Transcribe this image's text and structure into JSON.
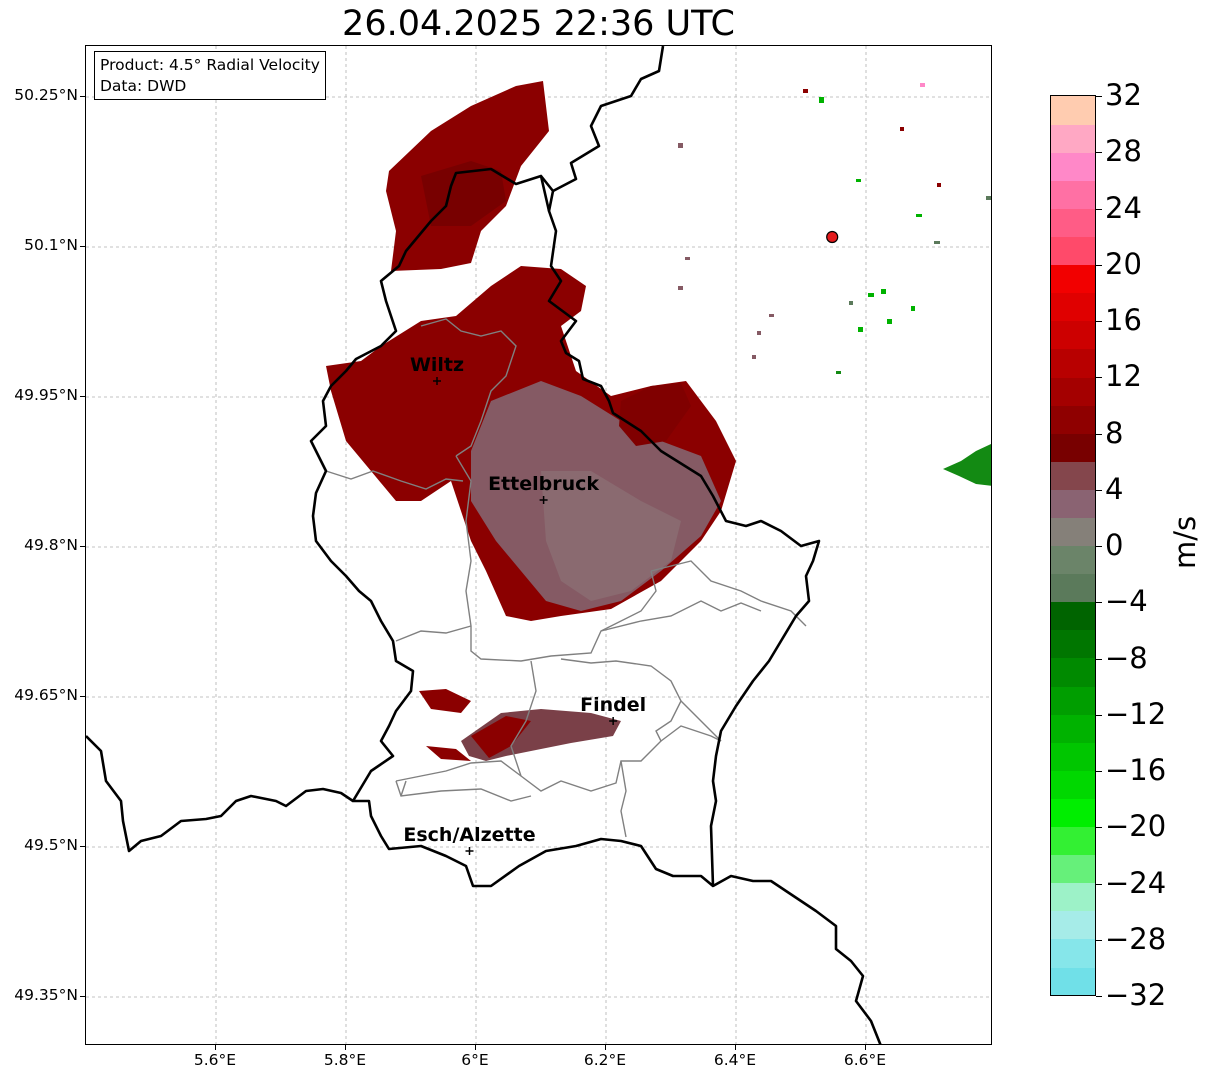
{
  "title": "26.04.2025 22:36 UTC",
  "info": {
    "product": "Product: 4.5° Radial Velocity",
    "source": "Data: DWD"
  },
  "latitude_labels": [
    "50.25°N",
    "50.1°N",
    "49.95°N",
    "49.8°N",
    "49.65°N",
    "49.5°N",
    "49.35°N"
  ],
  "longitude_labels": [
    "5.6°E",
    "5.8°E",
    "6°E",
    "6.2°E",
    "6.4°E",
    "6.6°E"
  ],
  "cities": [
    {
      "name": "Wiltz",
      "lon": 5.94,
      "lat": 49.966
    },
    {
      "name": "Ettelbruck",
      "lon": 6.104,
      "lat": 49.847
    },
    {
      "name": "Findel",
      "lon": 6.211,
      "lat": 49.626
    },
    {
      "name": "Esch/Alzette",
      "lon": 5.99,
      "lat": 49.496
    }
  ],
  "radar_site": {
    "lon": 6.548,
    "lat": 50.11,
    "color": "#e41a1c"
  },
  "colorbar": {
    "label": "m/s",
    "min": -32,
    "max": 32,
    "tick_labels": [
      "32",
      "28",
      "24",
      "20",
      "16",
      "12",
      "8",
      "4",
      "0",
      "−4",
      "−8",
      "−12",
      "−16",
      "−20",
      "−24",
      "−28",
      "−32"
    ],
    "colors_bottom_to_top": [
      "#70e0e8",
      "#86e6ea",
      "#a6ece8",
      "#9df2c8",
      "#66f07a",
      "#33f033",
      "#00ee00",
      "#00d800",
      "#00c600",
      "#00b200",
      "#009e00",
      "#008a00",
      "#007600",
      "#006400",
      "#5b7a5b",
      "#6b8469",
      "#858079",
      "#8a6372",
      "#84464c",
      "#780000",
      "#8f0000",
      "#a40000",
      "#b80000",
      "#cd0000",
      "#e00000",
      "#f20000",
      "#ff4a6a",
      "#ff5c86",
      "#ff70a4",
      "#ff88c8",
      "#ffa8c4",
      "#ffccb0"
    ]
  },
  "colors": {
    "outbound_strong": "#8b0000",
    "outbound_weak": "#7a4a52",
    "near_zero": "#8a6a70",
    "inbound": "#138a13",
    "border_country": "#000000",
    "border_canton": "#808080"
  }
}
